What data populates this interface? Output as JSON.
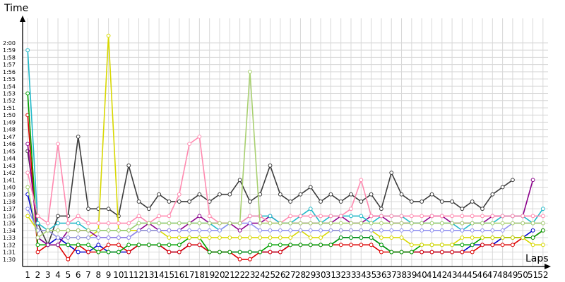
{
  "chart_data": {
    "type": "line",
    "xlabel": "Laps",
    "ylabel": "Time",
    "grid": true,
    "x": [
      1,
      2,
      3,
      4,
      5,
      6,
      7,
      8,
      9,
      10,
      11,
      12,
      13,
      14,
      15,
      16,
      17,
      18,
      19,
      20,
      21,
      22,
      23,
      24,
      25,
      26,
      27,
      28,
      29,
      30,
      31,
      32,
      33,
      34,
      35,
      36,
      37,
      38,
      39,
      40,
      41,
      42,
      43,
      44,
      45,
      46,
      47,
      48,
      49,
      50,
      51,
      52
    ],
    "x_tick_labels": [
      "1",
      "2",
      "3",
      "4",
      "5",
      "6",
      "7",
      "8",
      "9",
      "10",
      "11",
      "12",
      "13",
      "14",
      "15",
      "16",
      "17",
      "18",
      "19",
      "20",
      "21",
      "22",
      "23",
      "24",
      "25",
      "26",
      "27",
      "28",
      "29",
      "30",
      "31",
      "32",
      "33",
      "34",
      "35",
      "36",
      "37",
      "38",
      "39",
      "40",
      "41",
      "42",
      "43",
      "44",
      "45",
      "46",
      "47",
      "48",
      "49",
      "50",
      "51",
      "52"
    ],
    "y_tick_labels": [
      "1:30",
      "1:31",
      "1:32",
      "1:33",
      "1:34",
      "1:35",
      "1:36",
      "1:37",
      "1:38",
      "1:39",
      "1:40",
      "1:41",
      "1:42",
      "1:43",
      "1:44",
      "1:45",
      "1:46",
      "1:47",
      "1:48",
      "1:49",
      "1:50",
      "1:51",
      "1:52",
      "1:53",
      "1:54",
      "1:55",
      "1:56",
      "1:57",
      "1:58",
      "1:59",
      "2:00"
    ],
    "y_tick_values": [
      90,
      91,
      92,
      93,
      94,
      95,
      96,
      97,
      98,
      99,
      100,
      101,
      102,
      103,
      104,
      105,
      106,
      107,
      108,
      109,
      110,
      111,
      112,
      113,
      114,
      115,
      116,
      117,
      118,
      119,
      120
    ],
    "ylim": [
      89,
      124
    ],
    "xlim": [
      0.5,
      52.5
    ],
    "series": [
      {
        "color": "#3c3c3c",
        "values": [
          105,
          95,
          92,
          96,
          96,
          107,
          97,
          97,
          97,
          96,
          103,
          98,
          97,
          99,
          98,
          98,
          98,
          99,
          98,
          99,
          99,
          101,
          98,
          99,
          103,
          99,
          98,
          99,
          100,
          98,
          99,
          98,
          99,
          98,
          99,
          97,
          102,
          99,
          98,
          98,
          99,
          98,
          98,
          97,
          98,
          97,
          99,
          100,
          101,
          null,
          null,
          null
        ]
      },
      {
        "color": "#0000cc",
        "values": [
          99,
          93,
          92,
          93,
          92,
          91,
          91,
          92,
          91,
          91,
          91,
          92,
          92,
          92,
          91,
          91,
          92,
          92,
          91,
          91,
          91,
          91,
          91,
          91,
          91,
          91,
          92,
          92,
          92,
          92,
          92,
          93,
          93,
          93,
          93,
          92,
          91,
          91,
          91,
          91,
          91,
          91,
          91,
          91,
          92,
          92,
          92,
          93,
          93,
          93,
          94,
          null
        ]
      },
      {
        "color": "#dd0000",
        "values": [
          110,
          91,
          92,
          92,
          90,
          92,
          91,
          91,
          92,
          92,
          91,
          92,
          92,
          92,
          91,
          91,
          92,
          92,
          91,
          91,
          91,
          90,
          90,
          91,
          91,
          91,
          92,
          92,
          92,
          92,
          92,
          92,
          92,
          92,
          92,
          91,
          91,
          91,
          91,
          91,
          91,
          91,
          91,
          91,
          91,
          92,
          92,
          92,
          92,
          93,
          93,
          94
        ]
      },
      {
        "color": "#00a000",
        "values": [
          113,
          92,
          92,
          92,
          92,
          92,
          92,
          91,
          91,
          91,
          92,
          92,
          92,
          92,
          92,
          92,
          93,
          93,
          91,
          91,
          91,
          91,
          91,
          91,
          92,
          92,
          92,
          92,
          92,
          92,
          92,
          93,
          93,
          93,
          93,
          92,
          91,
          91,
          91,
          92,
          92,
          92,
          92,
          92,
          92,
          93,
          93,
          93,
          93,
          93,
          93,
          94
        ]
      },
      {
        "color": "#d8d800",
        "values": [
          96,
          94,
          94,
          93,
          93,
          93,
          93,
          94,
          121,
          94,
          94,
          94,
          94,
          94,
          93,
          93,
          93,
          93,
          93,
          93,
          93,
          93,
          93,
          93,
          93,
          93,
          93,
          94,
          93,
          93,
          94,
          94,
          94,
          94,
          94,
          93,
          93,
          93,
          92,
          92,
          92,
          92,
          92,
          93,
          93,
          93,
          93,
          93,
          93,
          93,
          92,
          92
        ]
      },
      {
        "color": "#8b008b",
        "values": [
          106,
          93,
          92,
          92,
          94,
          94,
          94,
          93,
          93,
          93,
          93,
          94,
          95,
          94,
          94,
          94,
          95,
          96,
          95,
          95,
          95,
          94,
          95,
          95,
          96,
          95,
          95,
          95,
          95,
          95,
          95,
          96,
          95,
          95,
          96,
          96,
          95,
          95,
          95,
          95,
          96,
          96,
          95,
          95,
          95,
          95,
          96,
          96,
          96,
          96,
          101,
          null
        ]
      },
      {
        "color": "#20b8c8",
        "values": [
          119,
          95,
          94,
          95,
          95,
          95,
          94,
          94,
          94,
          94,
          94,
          95,
          95,
          95,
          95,
          95,
          95,
          95,
          95,
          94,
          95,
          95,
          96,
          96,
          96,
          95,
          95,
          96,
          97,
          95,
          96,
          96,
          96,
          96,
          95,
          96,
          96,
          96,
          95,
          95,
          95,
          95,
          95,
          94,
          95,
          95,
          95,
          96,
          96,
          96,
          95,
          97
        ]
      },
      {
        "color": "#ff8ab0",
        "values": [
          102,
          96,
          95,
          106,
          95,
          96,
          95,
          95,
          95,
          95,
          95,
          96,
          95,
          96,
          96,
          99,
          106,
          107,
          96,
          95,
          95,
          95,
          96,
          96,
          95,
          95,
          96,
          96,
          96,
          96,
          96,
          96,
          97,
          101,
          96,
          96,
          96,
          96,
          96,
          96,
          96,
          96,
          96,
          96,
          96,
          96,
          96,
          96,
          96,
          96,
          96,
          96
        ]
      },
      {
        "color": "#9090f0",
        "values": [
          97,
          94,
          94,
          93,
          93,
          93,
          93,
          93,
          93,
          93,
          93,
          94,
          94,
          94,
          94,
          94,
          94,
          94,
          94,
          94,
          95,
          95,
          95,
          94,
          94,
          94,
          94,
          94,
          94,
          94,
          94,
          94,
          94,
          94,
          94,
          94,
          94,
          94,
          94,
          94,
          94,
          94,
          94,
          94,
          94,
          94,
          94,
          94,
          95,
          95,
          95,
          95
        ]
      },
      {
        "color": "#a8d070",
        "values": [
          100,
          93,
          94,
          94,
          94,
          94,
          94,
          94,
          94,
          94,
          94,
          95,
          95,
          95,
          95,
          95,
          95,
          95,
          95,
          95,
          95,
          95,
          116,
          95,
          95,
          95,
          95,
          95,
          95,
          95,
          95,
          95,
          95,
          95,
          95,
          95,
          95,
          95,
          95,
          95,
          95,
          95,
          95,
          95,
          95,
          95,
          95,
          95,
          95,
          95,
          95,
          95
        ]
      }
    ]
  }
}
